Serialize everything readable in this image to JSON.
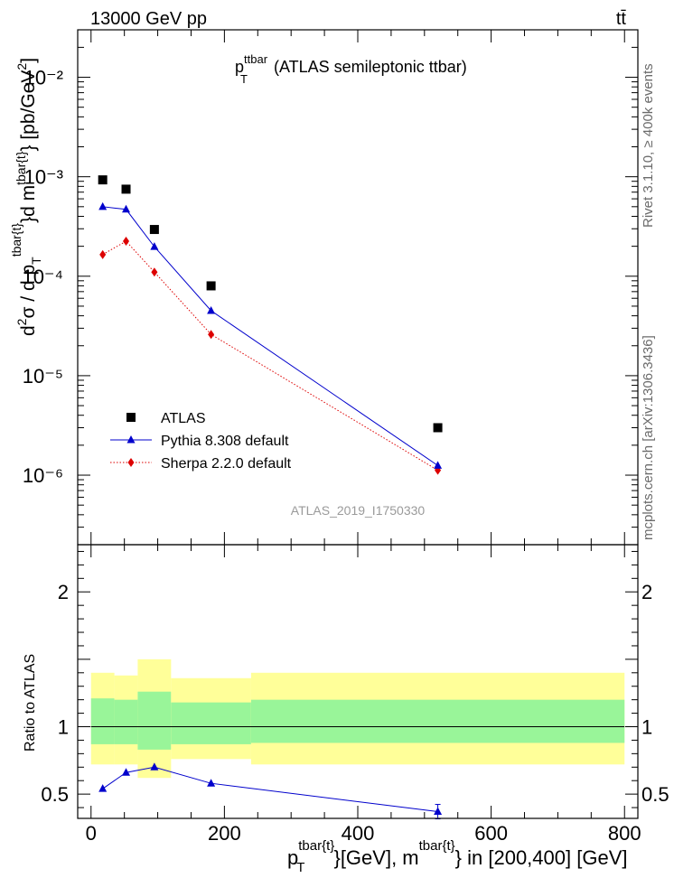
{
  "header": {
    "left": "13000 GeV pp",
    "right": "tt̄"
  },
  "side_labels": {
    "top": "Rivet 3.1.10, ≥ 400k events",
    "bottom": "mcplots.cern.ch [arXiv:1306.3436]"
  },
  "plot_title": {
    "main": "p",
    "sub": "T",
    "sup": "ttbar",
    "rest": " (ATLAS semileptonic ttbar)"
  },
  "watermark": "ATLAS_2019_I1750330",
  "y_axis_label": "d²σ / d p_T^{tbar{t}}d m^{tbar{t}} [pb/GeV²]",
  "ratio_axis_label": "Ratio to ATLAS",
  "x_axis_label": "p_T^{tbar{t}}[GeV], m^{tbar{t}} in [200,400] [GeV]",
  "chart_data": [
    {
      "type": "scatter",
      "panel": "main",
      "yscale": "log",
      "xlim": [
        -20,
        820
      ],
      "ylim": [
        2e-07,
        0.03
      ],
      "x": [
        17.5,
        52.5,
        95,
        180,
        520
      ],
      "series": [
        {
          "name": "ATLAS",
          "values": [
            0.00093,
            0.00075,
            0.000295,
            8e-05,
            3e-06
          ],
          "color": "#000000",
          "marker": "square"
        },
        {
          "name": "Pythia 8.308 default",
          "values": [
            0.0005,
            0.00047,
            0.000198,
            4.5e-05,
            1.25e-06
          ],
          "color": "#0000cc",
          "marker": "triangle"
        },
        {
          "name": "Sherpa 2.2.0 default",
          "values": [
            0.000165,
            0.000225,
            0.00011,
            2.6e-05,
            1.12e-06
          ],
          "color": "#dd0000",
          "marker": "diamond"
        }
      ],
      "y_ticks": [
        "10⁻²",
        "10⁻³",
        "10⁻⁴",
        "10⁻⁵",
        "10⁻⁶"
      ],
      "legend_placement": "lower-left"
    },
    {
      "type": "line",
      "panel": "ratio",
      "xlim": [
        -20,
        820
      ],
      "ylim": [
        0.32,
        2.35
      ],
      "x_ticks": [
        "0",
        "200",
        "400",
        "600",
        "800"
      ],
      "y_ticks": [
        "0.5",
        "1",
        "2"
      ],
      "bands": [
        {
          "x0": 0,
          "x1": 35,
          "green_lo": 0.87,
          "green_hi": 1.21,
          "yellow_lo": 0.72,
          "yellow_hi": 1.4
        },
        {
          "x0": 35,
          "x1": 70,
          "green_lo": 0.87,
          "green_hi": 1.2,
          "yellow_lo": 0.72,
          "yellow_hi": 1.38
        },
        {
          "x0": 70,
          "x1": 120,
          "green_lo": 0.83,
          "green_hi": 1.26,
          "yellow_lo": 0.62,
          "yellow_hi": 1.5
        },
        {
          "x0": 120,
          "x1": 240,
          "green_lo": 0.87,
          "green_hi": 1.18,
          "yellow_lo": 0.76,
          "yellow_hi": 1.36
        },
        {
          "x0": 240,
          "x1": 800,
          "green_lo": 0.88,
          "green_hi": 1.2,
          "yellow_lo": 0.72,
          "yellow_hi": 1.4
        }
      ],
      "series": [
        {
          "name": "Pythia 8.308 default",
          "values": [
            0.54,
            0.66,
            0.7,
            0.58,
            0.37
          ],
          "color": "#0000cc"
        }
      ]
    }
  ]
}
